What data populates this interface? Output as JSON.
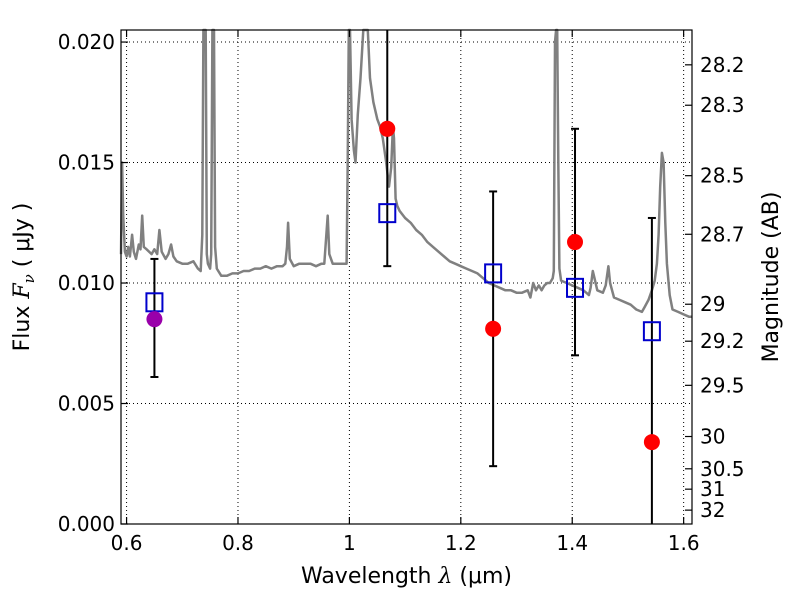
{
  "chart_data": {
    "type": "scatter",
    "xlabel": "Wavelength  λ (μm)",
    "xlabel_parts": {
      "main": "Wavelength  ",
      "sym": "λ",
      "unit": " (μm)"
    },
    "ylabel_parts": {
      "main": "Flux  ",
      "sym": "F",
      "sub": "ν",
      "unit": "  ( μJy )"
    },
    "ylabel_right": "Magnitude (AB)",
    "xlim": [
      0.59,
      1.615
    ],
    "ylim": [
      0.0,
      0.0205
    ],
    "grid": true,
    "grid_style": "dotted",
    "x_ticks": [
      {
        "v": 0.6,
        "label": "0.6"
      },
      {
        "v": 0.8,
        "label": "0.8"
      },
      {
        "v": 1.0,
        "label": "1"
      },
      {
        "v": 1.2,
        "label": "1.2"
      },
      {
        "v": 1.4,
        "label": "1.4"
      },
      {
        "v": 1.6,
        "label": "1.6"
      }
    ],
    "y_ticks": [
      {
        "v": 0.0,
        "label": "0.000"
      },
      {
        "v": 0.005,
        "label": "0.005"
      },
      {
        "v": 0.01,
        "label": "0.010"
      },
      {
        "v": 0.015,
        "label": "0.015"
      },
      {
        "v": 0.02,
        "label": "0.020"
      }
    ],
    "mag_ticks": [
      {
        "mag": 28.2,
        "label": "28.2"
      },
      {
        "mag": 28.3,
        "label": "28.3"
      },
      {
        "mag": 28.5,
        "label": "28.5"
      },
      {
        "mag": 28.7,
        "label": "28.7"
      },
      {
        "mag": 29.0,
        "label": "29"
      },
      {
        "mag": 29.2,
        "label": "29.2"
      },
      {
        "mag": 29.5,
        "label": "29.5"
      },
      {
        "mag": 30.0,
        "label": "30"
      },
      {
        "mag": 30.5,
        "label": "30.5"
      },
      {
        "mag": 31.0,
        "label": "31"
      },
      {
        "mag": 32.0,
        "label": "32"
      }
    ],
    "colors": {
      "spectrum": "#808080",
      "model": "#0000cc",
      "observed": "#ff0000",
      "highlight": "#9900aa",
      "errorbar": "#000000"
    },
    "spectrum": [
      [
        0.59,
        0.0112
      ],
      [
        0.592,
        0.015
      ],
      [
        0.594,
        0.0128
      ],
      [
        0.597,
        0.0113
      ],
      [
        0.6,
        0.0111
      ],
      [
        0.603,
        0.0115
      ],
      [
        0.606,
        0.0111
      ],
      [
        0.61,
        0.012
      ],
      [
        0.613,
        0.0113
      ],
      [
        0.617,
        0.011
      ],
      [
        0.622,
        0.0116
      ],
      [
        0.625,
        0.0114
      ],
      [
        0.628,
        0.0128
      ],
      [
        0.631,
        0.0115
      ],
      [
        0.636,
        0.0114
      ],
      [
        0.645,
        0.0112
      ],
      [
        0.65,
        0.0114
      ],
      [
        0.655,
        0.0112
      ],
      [
        0.659,
        0.0122
      ],
      [
        0.663,
        0.0113
      ],
      [
        0.67,
        0.011
      ],
      [
        0.675,
        0.0112
      ],
      [
        0.68,
        0.0116
      ],
      [
        0.684,
        0.0111
      ],
      [
        0.69,
        0.0109
      ],
      [
        0.7,
        0.0108
      ],
      [
        0.71,
        0.0108
      ],
      [
        0.72,
        0.0109
      ],
      [
        0.728,
        0.0106
      ],
      [
        0.733,
        0.0105
      ],
      [
        0.736,
        0.012
      ],
      [
        0.738,
        0.021
      ],
      [
        0.742,
        0.021
      ],
      [
        0.744,
        0.0112
      ],
      [
        0.746,
        0.0108
      ],
      [
        0.75,
        0.0106
      ],
      [
        0.752,
        0.0112
      ],
      [
        0.754,
        0.021
      ],
      [
        0.757,
        0.021
      ],
      [
        0.759,
        0.0115
      ],
      [
        0.762,
        0.0106
      ],
      [
        0.77,
        0.0103
      ],
      [
        0.78,
        0.0103
      ],
      [
        0.79,
        0.0104
      ],
      [
        0.8,
        0.0104
      ],
      [
        0.81,
        0.0105
      ],
      [
        0.82,
        0.0105
      ],
      [
        0.83,
        0.0106
      ],
      [
        0.84,
        0.0106
      ],
      [
        0.85,
        0.0107
      ],
      [
        0.86,
        0.0106
      ],
      [
        0.87,
        0.0107
      ],
      [
        0.88,
        0.0107
      ],
      [
        0.885,
        0.0108
      ],
      [
        0.888,
        0.0115
      ],
      [
        0.89,
        0.0125
      ],
      [
        0.893,
        0.011
      ],
      [
        0.9,
        0.0107
      ],
      [
        0.91,
        0.0108
      ],
      [
        0.92,
        0.0108
      ],
      [
        0.93,
        0.0108
      ],
      [
        0.94,
        0.0107
      ],
      [
        0.95,
        0.0108
      ],
      [
        0.955,
        0.0108
      ],
      [
        0.958,
        0.0118
      ],
      [
        0.961,
        0.0128
      ],
      [
        0.964,
        0.0112
      ],
      [
        0.97,
        0.0108
      ],
      [
        0.98,
        0.0108
      ],
      [
        0.99,
        0.0108
      ],
      [
        0.995,
        0.0108
      ],
      [
        0.997,
        0.015
      ],
      [
        0.999,
        0.021
      ],
      [
        1.001,
        0.021
      ],
      [
        1.004,
        0.0168
      ],
      [
        1.008,
        0.0155
      ],
      [
        1.011,
        0.015
      ],
      [
        1.015,
        0.017
      ],
      [
        1.02,
        0.0185
      ],
      [
        1.025,
        0.021
      ],
      [
        1.033,
        0.021
      ],
      [
        1.037,
        0.0185
      ],
      [
        1.043,
        0.0175
      ],
      [
        1.05,
        0.0168
      ],
      [
        1.055,
        0.0165
      ],
      [
        1.06,
        0.016
      ],
      [
        1.066,
        0.015
      ],
      [
        1.071,
        0.014
      ],
      [
        1.075,
        0.0148
      ],
      [
        1.078,
        0.0165
      ],
      [
        1.08,
        0.016
      ],
      [
        1.083,
        0.0135
      ],
      [
        1.086,
        0.0132
      ],
      [
        1.09,
        0.013
      ],
      [
        1.1,
        0.0127
      ],
      [
        1.11,
        0.0125
      ],
      [
        1.12,
        0.0122
      ],
      [
        1.13,
        0.012
      ],
      [
        1.14,
        0.0117
      ],
      [
        1.15,
        0.0115
      ],
      [
        1.16,
        0.0113
      ],
      [
        1.17,
        0.0111
      ],
      [
        1.18,
        0.0109
      ],
      [
        1.19,
        0.0108
      ],
      [
        1.2,
        0.0107
      ],
      [
        1.21,
        0.0106
      ],
      [
        1.22,
        0.0105
      ],
      [
        1.23,
        0.0104
      ],
      [
        1.24,
        0.0102
      ],
      [
        1.25,
        0.01
      ],
      [
        1.26,
        0.0099
      ],
      [
        1.27,
        0.0098
      ],
      [
        1.28,
        0.0097
      ],
      [
        1.29,
        0.0097
      ],
      [
        1.3,
        0.0096
      ],
      [
        1.31,
        0.0096
      ],
      [
        1.32,
        0.0097
      ],
      [
        1.325,
        0.0094
      ],
      [
        1.33,
        0.01
      ],
      [
        1.335,
        0.0097
      ],
      [
        1.34,
        0.0099
      ],
      [
        1.345,
        0.0097
      ],
      [
        1.35,
        0.0099
      ],
      [
        1.355,
        0.01
      ],
      [
        1.36,
        0.01
      ],
      [
        1.365,
        0.0102
      ],
      [
        1.367,
        0.0105
      ],
      [
        1.369,
        0.02
      ],
      [
        1.371,
        0.021
      ],
      [
        1.373,
        0.021
      ],
      [
        1.375,
        0.015
      ],
      [
        1.377,
        0.0106
      ],
      [
        1.38,
        0.0101
      ],
      [
        1.39,
        0.01
      ],
      [
        1.4,
        0.0099
      ],
      [
        1.41,
        0.0098
      ],
      [
        1.42,
        0.0097
      ],
      [
        1.425,
        0.0096
      ],
      [
        1.43,
        0.0095
      ],
      [
        1.433,
        0.0098
      ],
      [
        1.437,
        0.0105
      ],
      [
        1.44,
        0.0102
      ],
      [
        1.445,
        0.0097
      ],
      [
        1.455,
        0.0096
      ],
      [
        1.46,
        0.0099
      ],
      [
        1.465,
        0.0107
      ],
      [
        1.468,
        0.01
      ],
      [
        1.475,
        0.0094
      ],
      [
        1.485,
        0.0093
      ],
      [
        1.495,
        0.0092
      ],
      [
        1.505,
        0.0091
      ],
      [
        1.515,
        0.0089
      ],
      [
        1.525,
        0.0088
      ],
      [
        1.53,
        0.009
      ],
      [
        1.537,
        0.0093
      ],
      [
        1.543,
        0.0097
      ],
      [
        1.548,
        0.0101
      ],
      [
        1.552,
        0.0108
      ],
      [
        1.555,
        0.012
      ],
      [
        1.558,
        0.014
      ],
      [
        1.561,
        0.0154
      ],
      [
        1.564,
        0.015
      ],
      [
        1.567,
        0.0125
      ],
      [
        1.57,
        0.0108
      ],
      [
        1.575,
        0.0095
      ],
      [
        1.58,
        0.0089
      ],
      [
        1.59,
        0.0088
      ],
      [
        1.6,
        0.0087
      ],
      [
        1.61,
        0.0086
      ],
      [
        1.615,
        0.0086
      ]
    ],
    "models": [
      {
        "x": 0.65,
        "y": 0.0092
      },
      {
        "x": 1.068,
        "y": 0.0129
      },
      {
        "x": 1.258,
        "y": 0.0104
      },
      {
        "x": 1.405,
        "y": 0.0098
      },
      {
        "x": 1.543,
        "y": 0.008
      }
    ],
    "observations": [
      {
        "x": 0.65,
        "y": 0.0085,
        "ylo": 0.0061,
        "yhi": 0.011,
        "highlight": true
      },
      {
        "x": 1.068,
        "y": 0.0164,
        "ylo": 0.0107,
        "yhi": 0.021,
        "highlight": false
      },
      {
        "x": 1.258,
        "y": 0.0081,
        "ylo": 0.0024,
        "yhi": 0.0138,
        "highlight": false
      },
      {
        "x": 1.405,
        "y": 0.0117,
        "ylo": 0.007,
        "yhi": 0.0164,
        "highlight": false
      },
      {
        "x": 1.543,
        "y": 0.0034,
        "ylo": 0.0,
        "yhi": 0.0127,
        "highlight": false
      }
    ]
  }
}
